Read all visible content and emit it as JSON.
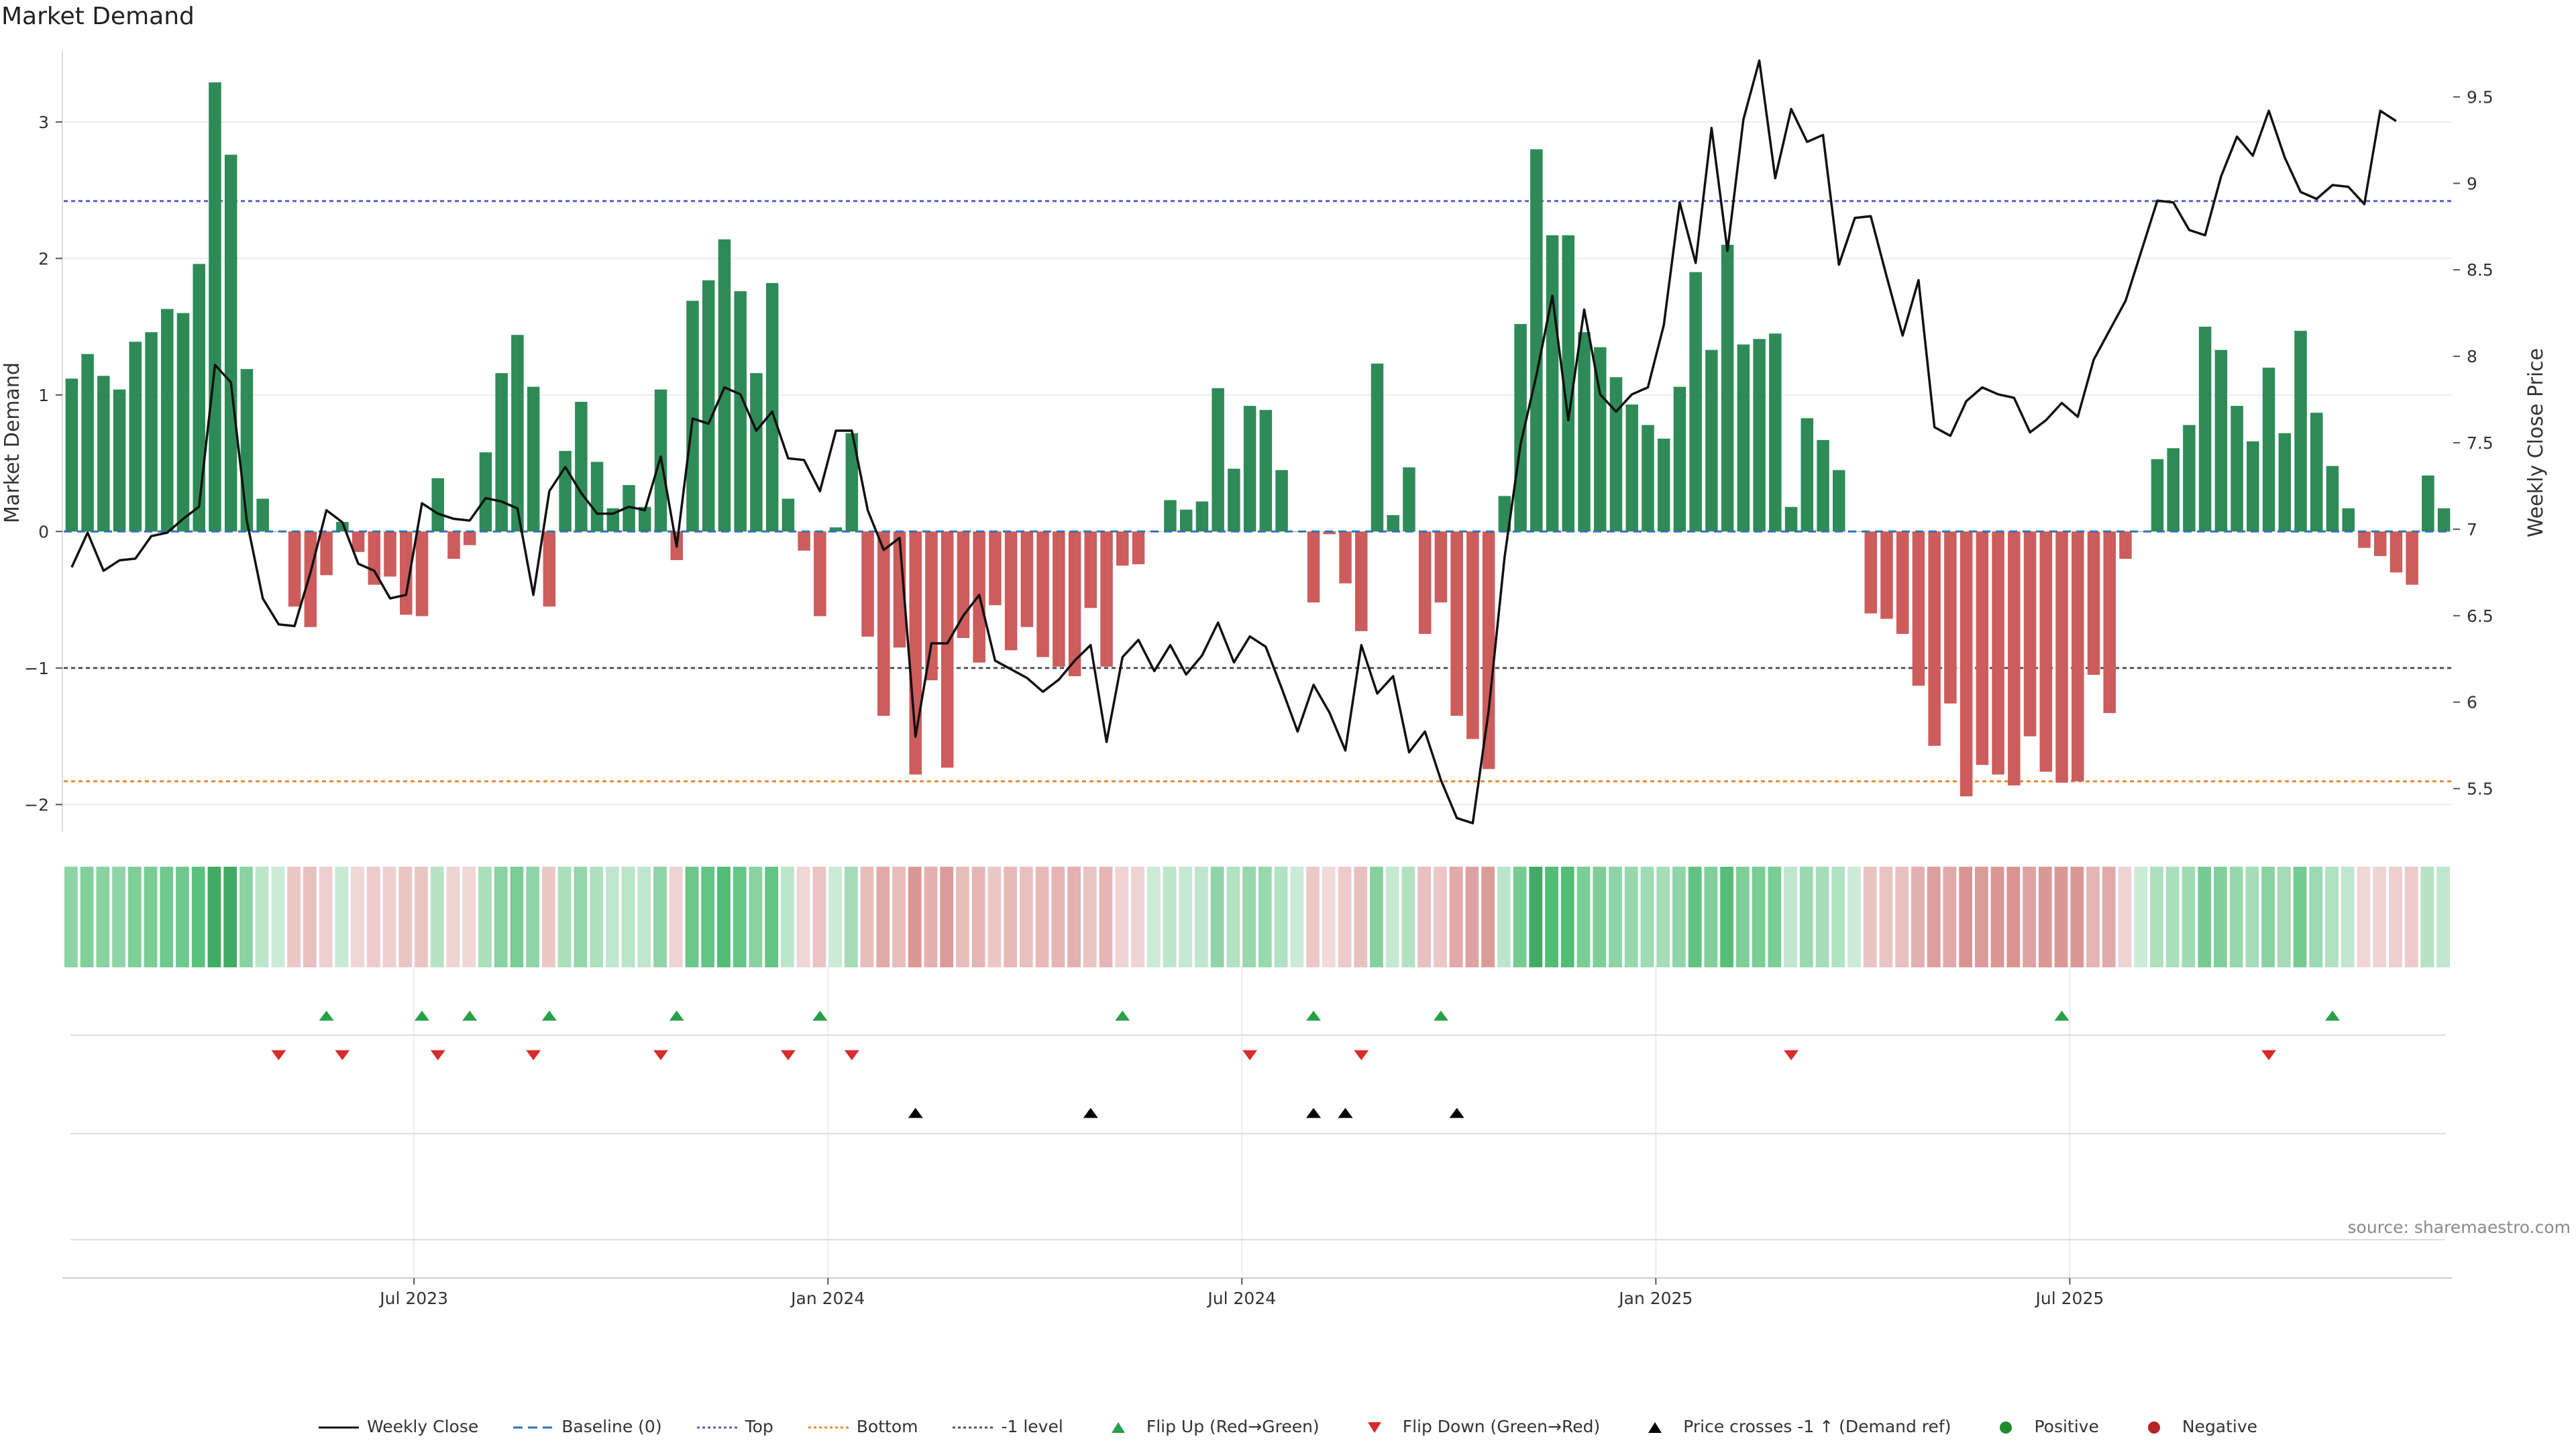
{
  "chart_data": {
    "type": "bar",
    "title": "Market Demand",
    "ylabel": "Market Demand",
    "y2label": "Weekly Close Price",
    "ylim": [
      -2.2,
      3.5
    ],
    "y2lim": [
      5.25,
      9.75
    ],
    "yticks": [
      3,
      2,
      1,
      0,
      -1,
      -2
    ],
    "ytick_labels": [
      "3",
      "2",
      "1",
      "0",
      "−1",
      "−2"
    ],
    "y2ticks": [
      9.5,
      9,
      8.5,
      8,
      7.5,
      7,
      6.5,
      6,
      5.5
    ],
    "y2tick_labels": [
      "9.5",
      "9",
      "8.5",
      "8",
      "7.5",
      "7",
      "6.5",
      "6",
      "5.5"
    ],
    "xtick_labels": [
      "Jul 2023",
      "Jan 2024",
      "Jul 2024",
      "Jan 2025",
      "Jul 2025"
    ],
    "xtick_index": [
      22,
      48,
      74,
      100,
      126
    ],
    "reference_levels": {
      "top": 2.42,
      "bottom": -1.83,
      "minus_one": -1
    },
    "demand": [
      1.12,
      1.3,
      1.14,
      1.04,
      1.39,
      1.46,
      1.63,
      1.6,
      1.96,
      3.29,
      2.76,
      1.19,
      0.24,
      0,
      -0.55,
      -0.7,
      -0.32,
      0.07,
      -0.15,
      -0.39,
      -0.33,
      -0.61,
      -0.62,
      0.39,
      -0.2,
      -0.1,
      0.58,
      1.16,
      1.44,
      1.06,
      -0.55,
      0.59,
      0.95,
      0.51,
      0.17,
      0.34,
      0.18,
      1.04,
      -0.21,
      1.69,
      1.84,
      2.14,
      1.76,
      1.16,
      1.82,
      0.24,
      -0.14,
      -0.62,
      0.03,
      0.72,
      -0.77,
      -1.35,
      -0.85,
      -1.78,
      -1.09,
      -1.73,
      -0.78,
      -0.96,
      -0.54,
      -0.87,
      -0.7,
      -0.92,
      -0.99,
      -1.06,
      -0.56,
      -0.99,
      -0.25,
      -0.24,
      0,
      0.23,
      0.16,
      0.22,
      1.05,
      0.46,
      0.92,
      0.89,
      0.45,
      0,
      -0.52,
      -0.02,
      -0.38,
      -0.73,
      1.23,
      0.12,
      0.47,
      -0.75,
      -0.52,
      -1.35,
      -1.52,
      -1.74,
      0.26,
      1.52,
      2.8,
      2.17,
      2.17,
      1.46,
      1.35,
      1.13,
      0.93,
      0.78,
      0.68,
      1.06,
      1.9,
      1.33,
      2.1,
      1.37,
      1.41,
      1.45,
      0.18,
      0.83,
      0.67,
      0.45,
      0,
      -0.6,
      -0.64,
      -0.75,
      -1.13,
      -1.57,
      -1.26,
      -1.94,
      -1.71,
      -1.78,
      -1.86,
      -1.5,
      -1.76,
      -1.84,
      -1.83,
      -1.05,
      -1.33,
      -0.2,
      0,
      0.53,
      0.61,
      0.78,
      1.5,
      1.33,
      0.92,
      0.66,
      1.2,
      0.72,
      1.47,
      0.87,
      0.48,
      0.17,
      -0.12,
      -0.18,
      -0.3,
      -0.39,
      0.41,
      0.17
    ],
    "weekly_close": [
      6.78,
      6.98,
      6.76,
      6.82,
      6.83,
      6.96,
      6.98,
      7.06,
      7.13,
      7.95,
      7.85,
      7.05,
      6.6,
      6.45,
      6.44,
      6.75,
      7.11,
      7.04,
      6.8,
      6.76,
      6.6,
      6.62,
      7.15,
      7.09,
      7.06,
      7.05,
      7.18,
      7.16,
      7.12,
      6.62,
      7.22,
      7.36,
      7.21,
      7.09,
      7.09,
      7.13,
      7.11,
      7.42,
      6.9,
      7.64,
      7.61,
      7.82,
      7.78,
      7.57,
      7.68,
      7.41,
      7.4,
      7.22,
      7.57,
      7.57,
      7.11,
      6.88,
      6.95,
      5.8,
      6.34,
      6.34,
      6.5,
      6.62,
      6.24,
      6.19,
      6.14,
      6.06,
      6.13,
      6.24,
      6.33,
      5.77,
      6.26,
      6.36,
      6.18,
      6.33,
      6.16,
      6.27,
      6.46,
      6.23,
      6.38,
      6.32,
      6.08,
      5.83,
      6.1,
      5.94,
      5.72,
      6.33,
      6.05,
      6.15,
      5.71,
      5.83,
      5.55,
      5.33,
      5.3,
      5.95,
      6.84,
      7.49,
      7.89,
      8.35,
      7.63,
      8.27,
      7.78,
      7.68,
      7.78,
      7.82,
      8.18,
      8.89,
      8.54,
      9.32,
      8.61,
      9.37,
      9.71,
      9.03,
      9.43,
      9.24,
      9.28,
      8.53,
      8.8,
      8.81,
      8.46,
      8.12,
      8.44,
      7.59,
      7.54,
      7.74,
      7.82,
      7.78,
      7.76,
      7.56,
      7.63,
      7.73,
      7.65,
      7.98,
      8.15,
      8.32,
      8.61,
      8.9,
      8.89,
      8.73,
      8.7,
      9.04,
      9.27,
      9.16,
      9.42,
      9.15,
      8.95,
      8.91,
      8.99,
      8.98,
      8.88,
      9.42,
      9.36
    ],
    "flip_up_index": [
      16,
      22,
      25,
      30,
      38,
      47,
      66,
      78,
      86,
      125,
      142
    ],
    "flip_down_index": [
      13,
      17,
      23,
      29,
      37,
      45,
      49,
      74,
      81,
      108,
      138
    ],
    "price_cross_index": [
      53,
      64,
      78,
      80,
      87
    ],
    "legend": [
      {
        "label": "Weekly Close",
        "color": "#111111"
      },
      {
        "label": "Baseline (0)",
        "color": "#2f72b7"
      },
      {
        "label": "Top",
        "color": "#5a5fc4"
      },
      {
        "label": "Bottom",
        "color": "#e8892b"
      },
      {
        "label": "-1 level",
        "color": "#555555"
      },
      {
        "label": "Flip Up (Red→Green)",
        "color": "#27a04a"
      },
      {
        "label": "Flip Down (Green→Red)",
        "color": "#d62c2c"
      },
      {
        "label": "Price crosses -1 ↑ (Demand ref)",
        "color": "#000000"
      },
      {
        "label": "Positive",
        "color": "#1f8a2e"
      },
      {
        "label": "Negative",
        "color": "#b52525"
      }
    ]
  },
  "colors": {
    "positive_bar": "#2e8b57",
    "negative_bar": "#cd5c5c",
    "price_line": "#111111"
  },
  "source": "source: sharemaestro.com"
}
